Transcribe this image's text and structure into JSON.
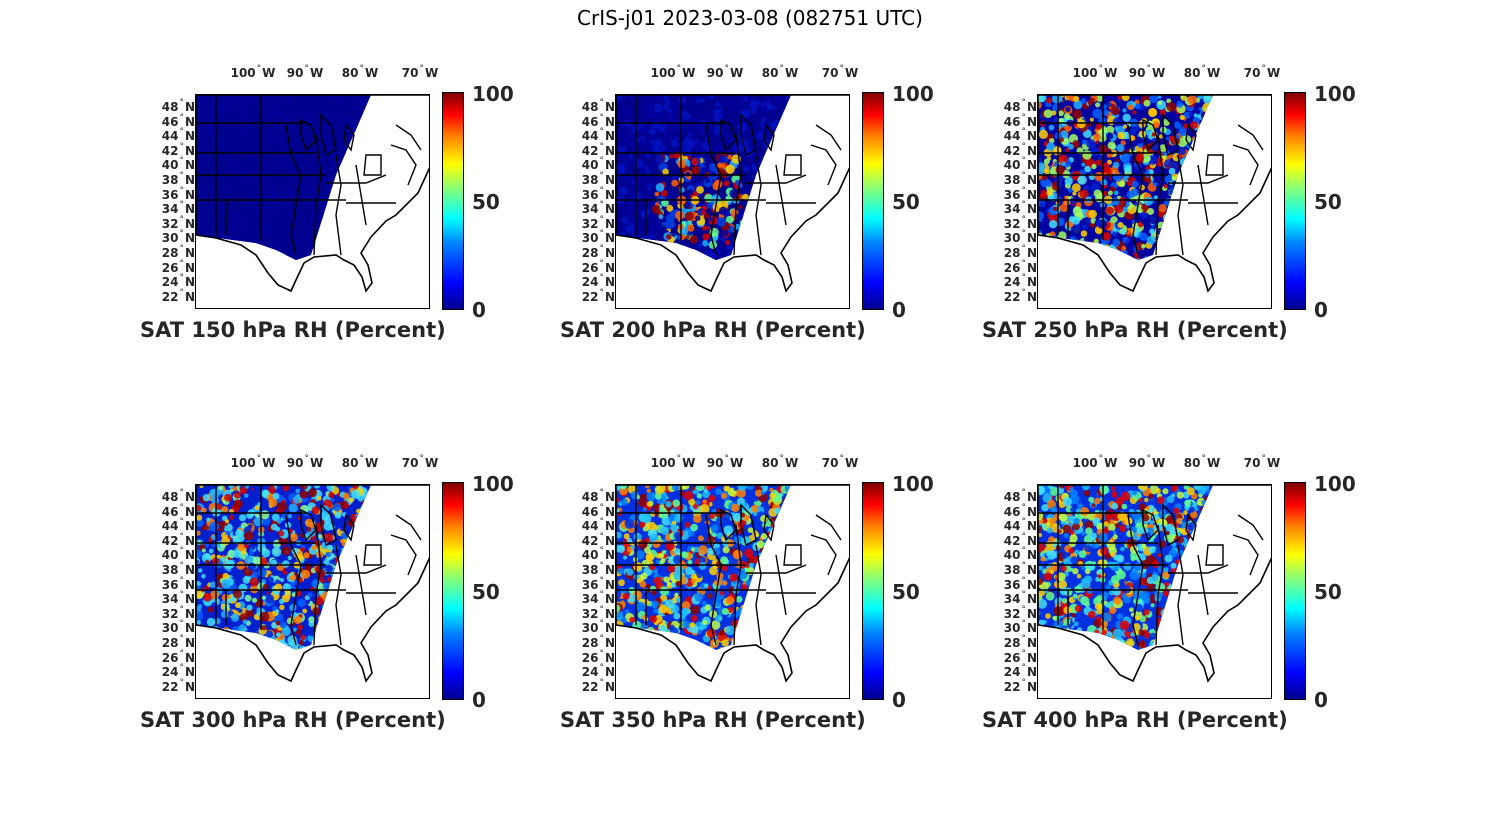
{
  "title": "CrIS-j01 2023-03-08 (082751 UTC)",
  "lon_labels": [
    "100",
    "90",
    "80",
    "70"
  ],
  "lon_suffix": "W",
  "lat_labels": [
    "48",
    "46",
    "44",
    "42",
    "40",
    "38",
    "36",
    "34",
    "32",
    "30",
    "28",
    "26",
    "24",
    "22"
  ],
  "lat_suffix": "N",
  "degree_symbol": "°",
  "colorbar": {
    "ticks": [
      "100",
      "50",
      "0"
    ],
    "min": 0,
    "max": 100,
    "colormap": "jet"
  },
  "panels": [
    {
      "title": "SAT 150 hPa RH (Percent)",
      "dominant": "dark-blue"
    },
    {
      "title": "SAT 200 hPa RH (Percent)",
      "dominant": "blue-with-red-band"
    },
    {
      "title": "SAT 250 hPa RH (Percent)",
      "dominant": "blue-cyan-with-red"
    },
    {
      "title": "SAT 300 hPa RH (Percent)",
      "dominant": "cyan-mixed"
    },
    {
      "title": "SAT 350 hPa RH (Percent)",
      "dominant": "cyan-yellow-mixed"
    },
    {
      "title": "SAT 400 hPa RH (Percent)",
      "dominant": "cyan-yellow-mixed"
    }
  ],
  "colors": {
    "dark_blue": "#00008f",
    "blue": "#0030d0",
    "cyan": "#20d0ff",
    "yellow": "#ffd000",
    "orange": "#ff7000",
    "red": "#d00000",
    "dark_red": "#800000"
  }
}
